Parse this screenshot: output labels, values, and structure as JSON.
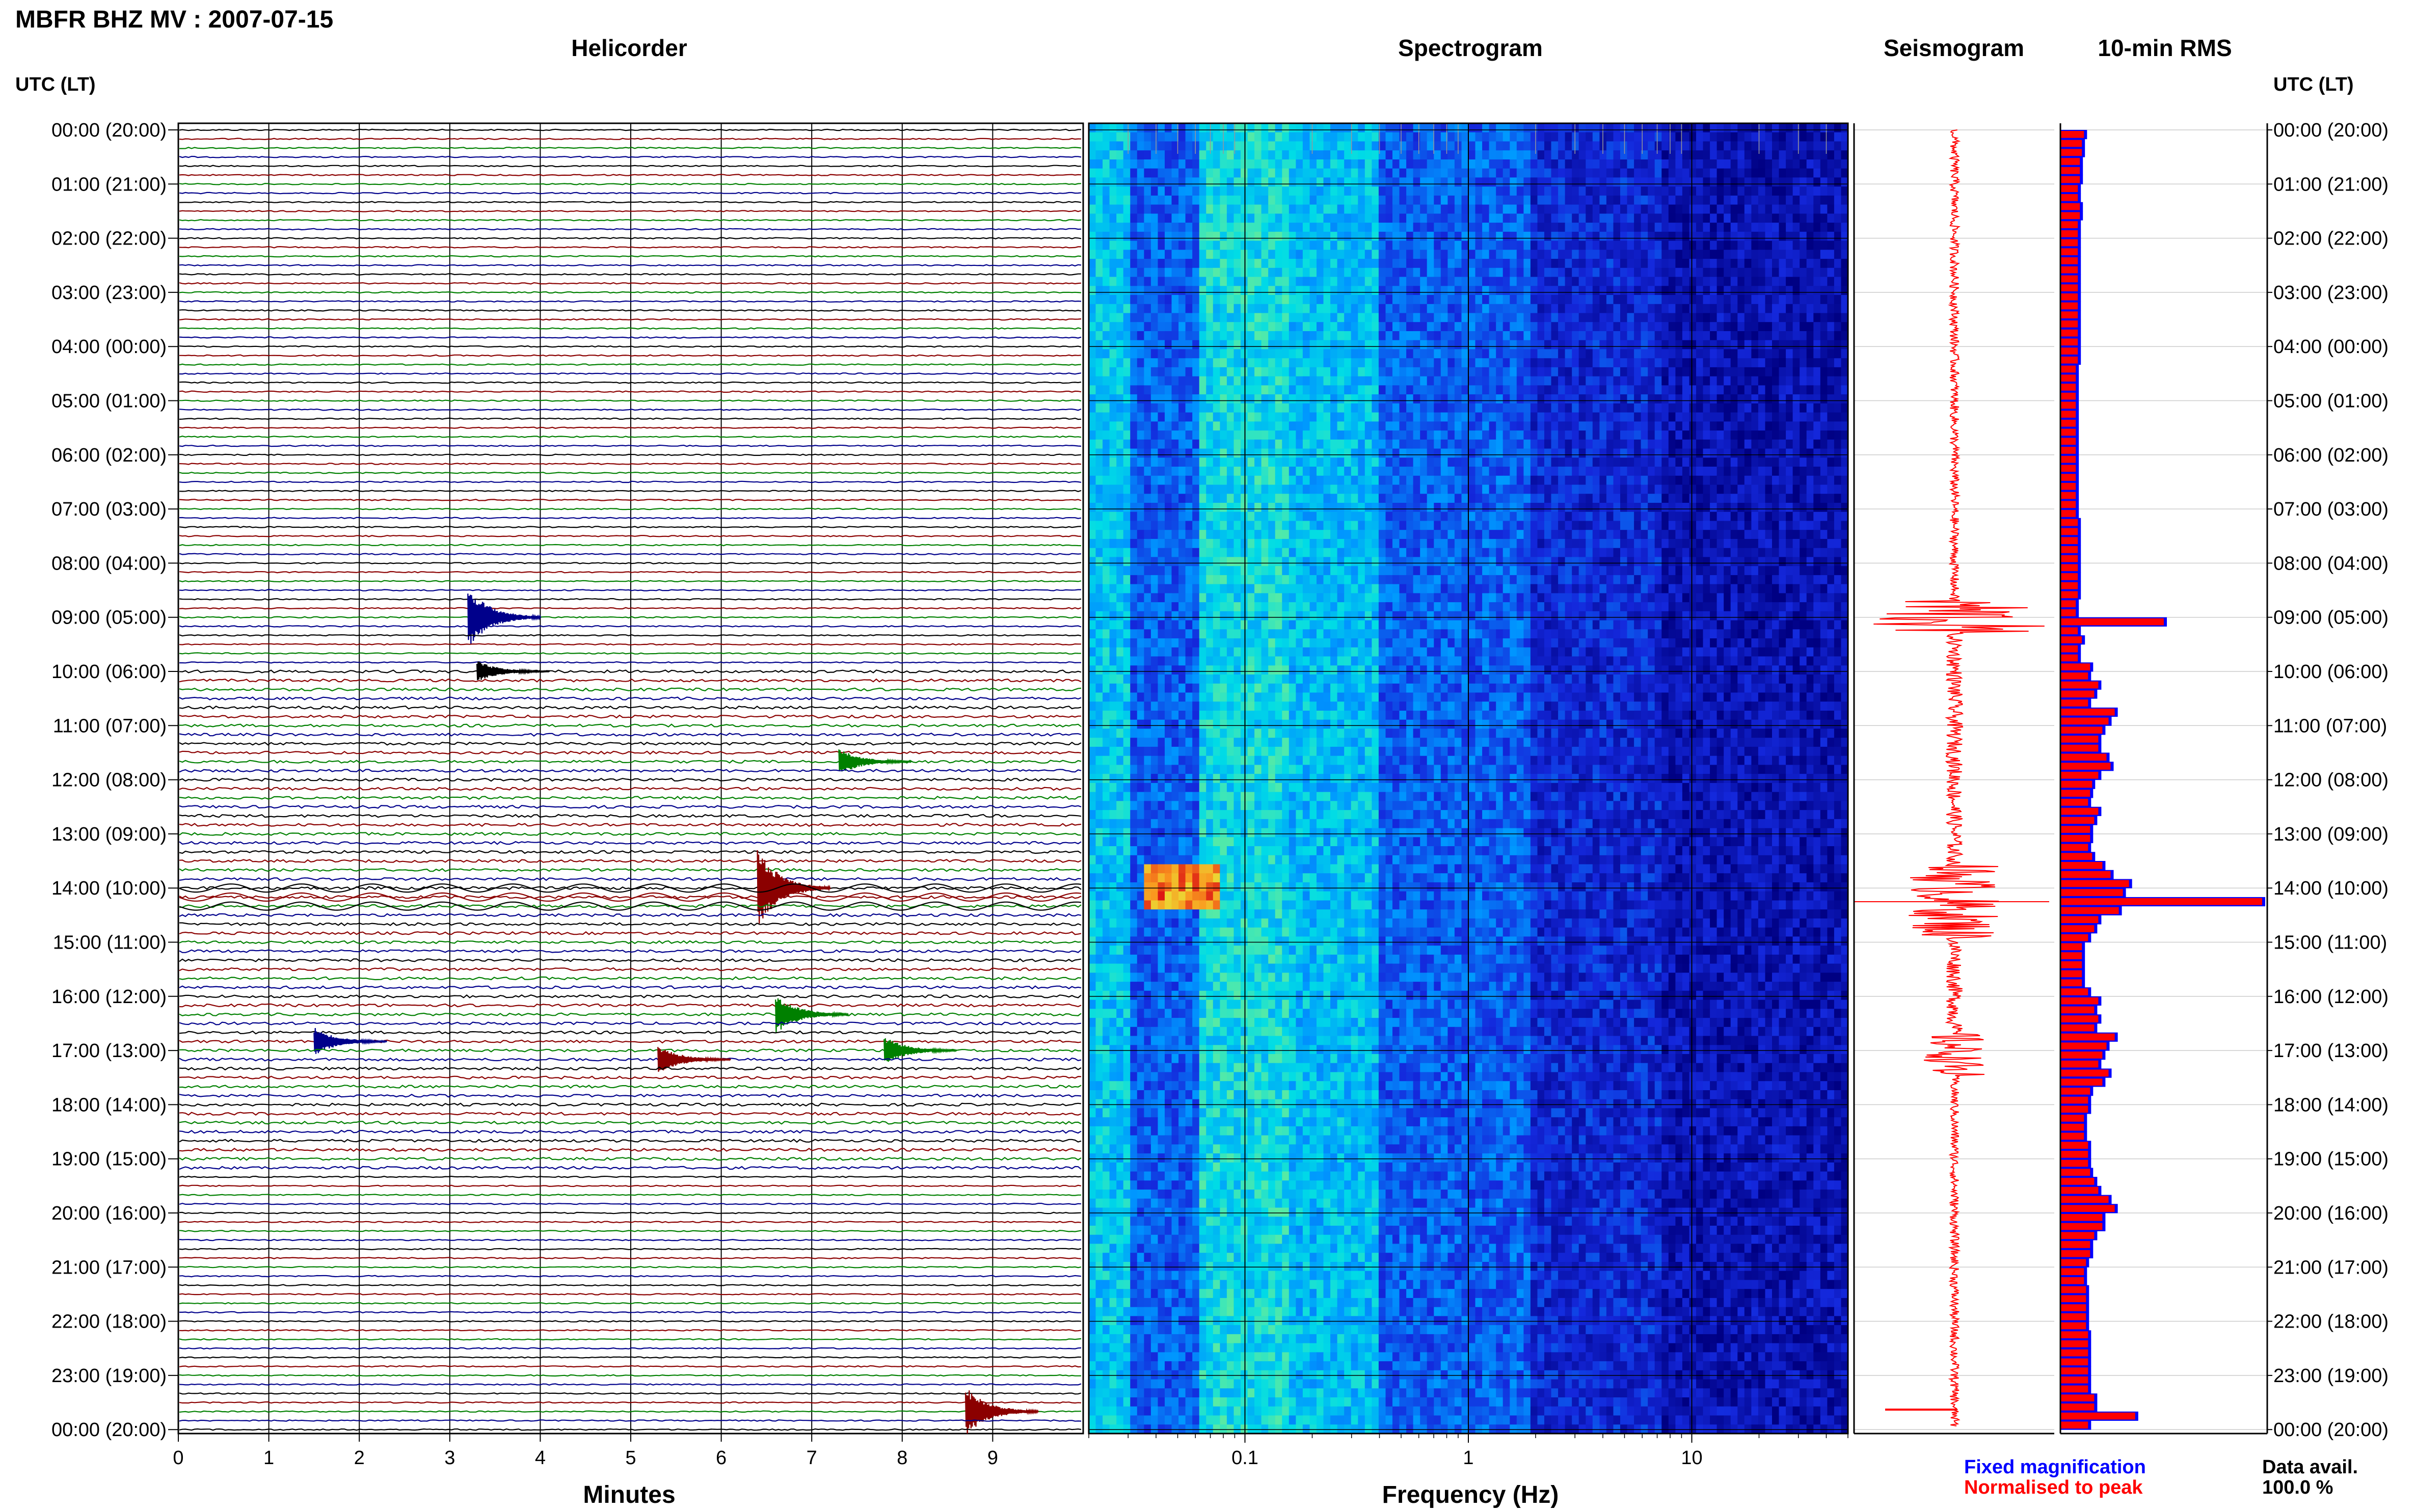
{
  "header": {
    "title": "MBFR BHZ MV : 2007-07-15",
    "utc_label_left": "UTC (LT)",
    "utc_label_right": "UTC (LT)"
  },
  "panels": {
    "helicorder": "Helicorder",
    "spectrogram": "Spectrogram",
    "seismogram": "Seismogram",
    "rms": "10-min RMS"
  },
  "axes": {
    "minutes_label": "Minutes",
    "frequency_label": "Frequency (Hz)"
  },
  "legend": {
    "fixed": "Fixed magnification",
    "normalised": "Normalised to peak",
    "fixed_color": "#0000ff",
    "normalised_color": "#ff0000"
  },
  "data_avail": {
    "label": "Data avail.",
    "value": "100.0 %"
  },
  "colors": {
    "trace_cycle": [
      "#000000",
      "#8b0000",
      "#008000",
      "#00008b"
    ],
    "spectrogram_low": "#000080",
    "spectrogram_high": "#ff0000"
  },
  "chart_data": [
    {
      "type": "line",
      "title": "Helicorder",
      "xlabel": "Minutes",
      "x_ticks": [
        "0",
        "1",
        "2",
        "3",
        "4",
        "5",
        "6",
        "7",
        "8",
        "9"
      ],
      "xlim": [
        0,
        10
      ],
      "time_labels": [
        "00:00 (20:00)",
        "01:00 (21:00)",
        "02:00 (22:00)",
        "03:00 (23:00)",
        "04:00 (00:00)",
        "05:00 (01:00)",
        "06:00 (02:00)",
        "07:00 (03:00)",
        "08:00 (04:00)",
        "09:00 (05:00)",
        "10:00 (06:00)",
        "11:00 (07:00)",
        "12:00 (08:00)",
        "13:00 (09:00)",
        "14:00 (10:00)",
        "15:00 (11:00)",
        "16:00 (12:00)",
        "17:00 (13:00)",
        "18:00 (14:00)",
        "19:00 (15:00)",
        "20:00 (16:00)",
        "21:00 (17:00)",
        "22:00 (18:00)",
        "23:00 (19:00)",
        "00:00 (20:00)"
      ],
      "rows": 145,
      "events": [
        {
          "row": 54,
          "minute": 3.2,
          "amp": 3.5,
          "color": "#00008b"
        },
        {
          "row": 60,
          "minute": 3.3,
          "amp": 1.2,
          "color": "#000000"
        },
        {
          "row": 70,
          "minute": 7.3,
          "amp": 1.5,
          "color": "#008000"
        },
        {
          "row": 84,
          "minute": 6.4,
          "amp": 4.5,
          "color": "#8b0000"
        },
        {
          "row": 98,
          "minute": 6.6,
          "amp": 2.2,
          "color": "#008000"
        },
        {
          "row": 101,
          "minute": 1.5,
          "amp": 1.6,
          "color": "#00008b"
        },
        {
          "row": 103,
          "minute": 5.3,
          "amp": 1.6,
          "color": "#8b0000"
        },
        {
          "row": 102,
          "minute": 7.8,
          "amp": 1.6,
          "color": "#008000"
        },
        {
          "row": 142,
          "minute": 8.7,
          "amp": 2.8,
          "color": "#8b0000"
        }
      ]
    },
    {
      "type": "heatmap",
      "title": "Spectrogram",
      "xlabel": "Frequency (Hz)",
      "x_scale": "log",
      "xlim": [
        0.02,
        50
      ],
      "x_ticks": [
        "0.1",
        "1",
        "10"
      ]
    },
    {
      "type": "line",
      "title": "Seismogram"
    },
    {
      "type": "bar",
      "title": "10-min RMS",
      "series": [
        {
          "name": "Fixed magnification",
          "color": "#0000ff"
        },
        {
          "name": "Normalised to peak",
          "color": "#ff0000"
        }
      ],
      "values": [
        0.13,
        0.12,
        0.12,
        0.11,
        0.11,
        0.11,
        0.1,
        0.1,
        0.11,
        0.11,
        0.1,
        0.1,
        0.1,
        0.1,
        0.1,
        0.1,
        0.1,
        0.1,
        0.1,
        0.1,
        0.1,
        0.1,
        0.1,
        0.1,
        0.1,
        0.1,
        0.09,
        0.09,
        0.09,
        0.09,
        0.09,
        0.09,
        0.09,
        0.09,
        0.09,
        0.09,
        0.09,
        0.09,
        0.09,
        0.09,
        0.09,
        0.09,
        0.09,
        0.1,
        0.1,
        0.1,
        0.1,
        0.1,
        0.1,
        0.1,
        0.1,
        0.1,
        0.09,
        0.09,
        0.52,
        0.1,
        0.12,
        0.1,
        0.1,
        0.16,
        0.15,
        0.2,
        0.18,
        0.15,
        0.28,
        0.25,
        0.22,
        0.2,
        0.2,
        0.24,
        0.26,
        0.2,
        0.17,
        0.16,
        0.15,
        0.2,
        0.18,
        0.16,
        0.16,
        0.15,
        0.17,
        0.22,
        0.26,
        0.35,
        0.32,
        1.0,
        0.3,
        0.2,
        0.18,
        0.15,
        0.12,
        0.12,
        0.12,
        0.12,
        0.12,
        0.15,
        0.2,
        0.18,
        0.2,
        0.18,
        0.28,
        0.24,
        0.22,
        0.2,
        0.25,
        0.22,
        0.16,
        0.15,
        0.15,
        0.13,
        0.13,
        0.13,
        0.15,
        0.15,
        0.15,
        0.16,
        0.18,
        0.2,
        0.25,
        0.28,
        0.22,
        0.22,
        0.18,
        0.16,
        0.16,
        0.14,
        0.13,
        0.13,
        0.14,
        0.14,
        0.14,
        0.14,
        0.14,
        0.15,
        0.15,
        0.15,
        0.15,
        0.15,
        0.15,
        0.15,
        0.18,
        0.18,
        0.38,
        0.15
      ]
    }
  ]
}
